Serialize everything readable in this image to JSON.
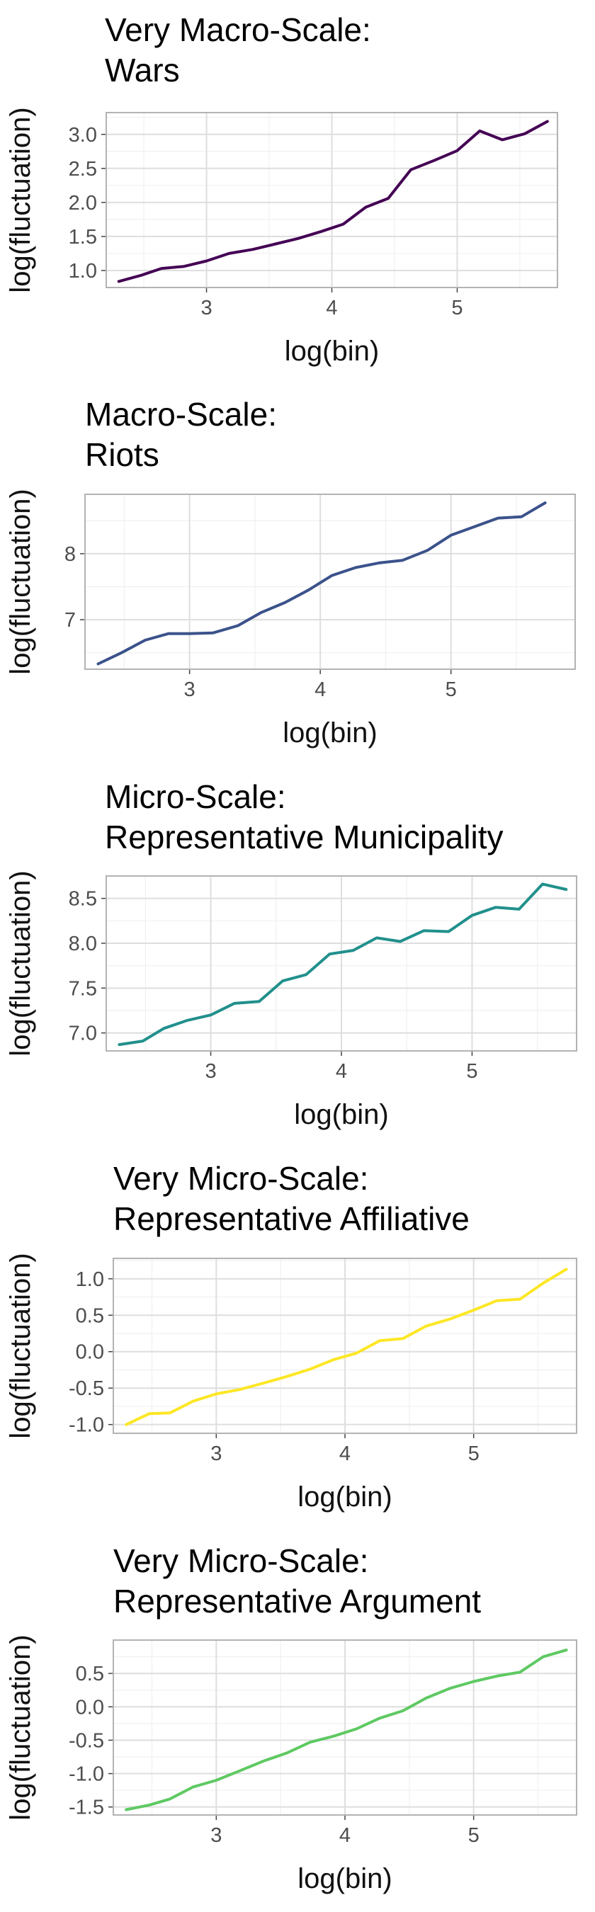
{
  "chart_data": [
    {
      "type": "line",
      "title_lines": [
        "Very Macro-Scale:",
        "Wars"
      ],
      "xlabel": "log(bin)",
      "ylabel": "log(fluctuation)",
      "color": "#440154",
      "xlim": [
        2.2,
        5.8
      ],
      "ylim": [
        0.75,
        3.32
      ],
      "xticks": [
        "3",
        "4",
        "5"
      ],
      "xtick_values": [
        3,
        4,
        5
      ],
      "yticks": [
        "1.0",
        "1.5",
        "2.0",
        "2.5",
        "3.0"
      ],
      "ytick_values": [
        1.0,
        1.5,
        2.0,
        2.5,
        3.0
      ],
      "grid": true,
      "x": [
        2.3,
        2.48,
        2.64,
        2.82,
        3.0,
        3.18,
        3.37,
        3.55,
        3.73,
        3.91,
        4.09,
        4.27,
        4.45,
        4.63,
        4.82,
        5.0,
        5.18,
        5.36,
        5.54,
        5.72
      ],
      "y": [
        0.84,
        0.93,
        1.03,
        1.06,
        1.14,
        1.25,
        1.31,
        1.39,
        1.47,
        1.57,
        1.68,
        1.93,
        2.06,
        2.48,
        2.62,
        2.76,
        3.05,
        2.92,
        3.01,
        3.19
      ]
    },
    {
      "type": "line",
      "title_lines": [
        "Macro-Scale:",
        "Riots"
      ],
      "xlabel": "log(bin)",
      "ylabel": "log(fluctuation)",
      "color": "#3b528b",
      "xlim": [
        2.2,
        5.95
      ],
      "ylim": [
        6.25,
        8.9
      ],
      "xticks": [
        "3",
        "4",
        "5"
      ],
      "xtick_values": [
        3,
        4,
        5
      ],
      "yticks": [
        "7",
        "8"
      ],
      "ytick_values": [
        7,
        8
      ],
      "grid": true,
      "x": [
        2.3,
        2.48,
        2.66,
        2.84,
        3.0,
        3.18,
        3.37,
        3.55,
        3.73,
        3.91,
        4.09,
        4.27,
        4.45,
        4.63,
        4.82,
        5.0,
        5.18,
        5.36,
        5.54,
        5.72
      ],
      "y": [
        6.33,
        6.5,
        6.69,
        6.79,
        6.79,
        6.8,
        6.91,
        7.11,
        7.26,
        7.45,
        7.67,
        7.79,
        7.86,
        7.9,
        8.05,
        8.28,
        8.41,
        8.54,
        8.56,
        8.77
      ]
    },
    {
      "type": "line",
      "title_lines": [
        "Micro-Scale:",
        "Representative Municipality"
      ],
      "xlabel": "log(bin)",
      "ylabel": "log(fluctuation)",
      "color": "#21908c",
      "xlim": [
        2.2,
        5.8
      ],
      "ylim": [
        6.8,
        8.75
      ],
      "xticks": [
        "3",
        "4",
        "5"
      ],
      "xtick_values": [
        3,
        4,
        5
      ],
      "yticks": [
        "7.0",
        "7.5",
        "8.0",
        "8.5"
      ],
      "ytick_values": [
        7.0,
        7.5,
        8.0,
        8.5
      ],
      "grid": true,
      "x": [
        2.3,
        2.48,
        2.64,
        2.82,
        3.0,
        3.18,
        3.37,
        3.55,
        3.73,
        3.91,
        4.09,
        4.27,
        4.45,
        4.63,
        4.82,
        5.0,
        5.18,
        5.36,
        5.54,
        5.72
      ],
      "y": [
        6.87,
        6.91,
        7.05,
        7.14,
        7.2,
        7.33,
        7.35,
        7.58,
        7.65,
        7.88,
        7.92,
        8.06,
        8.02,
        8.14,
        8.13,
        8.31,
        8.4,
        8.38,
        8.66,
        8.6
      ]
    },
    {
      "type": "line",
      "title_lines": [
        "Very Micro-Scale:",
        "Representative Affiliative"
      ],
      "xlabel": "log(bin)",
      "ylabel": "log(fluctuation)",
      "color": "#fde725",
      "xlim": [
        2.2,
        5.8
      ],
      "ylim": [
        -1.12,
        1.28
      ],
      "xticks": [
        "3",
        "4",
        "5"
      ],
      "xtick_values": [
        3,
        4,
        5
      ],
      "yticks": [
        "-1.0",
        "-0.5",
        "0.0",
        "0.5",
        "1.0"
      ],
      "ytick_values": [
        -1.0,
        -0.5,
        0.0,
        0.5,
        1.0
      ],
      "grid": true,
      "x": [
        2.3,
        2.48,
        2.64,
        2.82,
        3.0,
        3.18,
        3.37,
        3.55,
        3.73,
        3.91,
        4.09,
        4.27,
        4.45,
        4.63,
        4.82,
        5.0,
        5.18,
        5.36,
        5.54,
        5.72
      ],
      "y": [
        -1.0,
        -0.85,
        -0.84,
        -0.68,
        -0.58,
        -0.52,
        -0.43,
        -0.34,
        -0.24,
        -0.11,
        -0.02,
        0.15,
        0.18,
        0.35,
        0.45,
        0.57,
        0.7,
        0.72,
        0.94,
        1.13
      ]
    },
    {
      "type": "line",
      "title_lines": [
        "Very Micro-Scale:",
        "Representative Argument"
      ],
      "xlabel": "log(bin)",
      "ylabel": "log(fluctuation)",
      "color": "#5ec962",
      "xlim": [
        2.2,
        5.8
      ],
      "ylim": [
        -1.62,
        1.0
      ],
      "xticks": [
        "3",
        "4",
        "5"
      ],
      "xtick_values": [
        3,
        4,
        5
      ],
      "yticks": [
        "-1.5",
        "-1.0",
        "-0.5",
        "0.0",
        "0.5"
      ],
      "ytick_values": [
        -1.5,
        -1.0,
        -0.5,
        0.0,
        0.5
      ],
      "grid": true,
      "x": [
        2.3,
        2.48,
        2.64,
        2.82,
        3.0,
        3.18,
        3.37,
        3.55,
        3.73,
        3.91,
        4.09,
        4.27,
        4.45,
        4.63,
        4.82,
        5.0,
        5.18,
        5.36,
        5.54,
        5.72
      ],
      "y": [
        -1.54,
        -1.47,
        -1.38,
        -1.2,
        -1.1,
        -0.96,
        -0.81,
        -0.69,
        -0.53,
        -0.44,
        -0.33,
        -0.17,
        -0.06,
        0.13,
        0.28,
        0.38,
        0.46,
        0.52,
        0.75,
        0.85
      ]
    }
  ]
}
